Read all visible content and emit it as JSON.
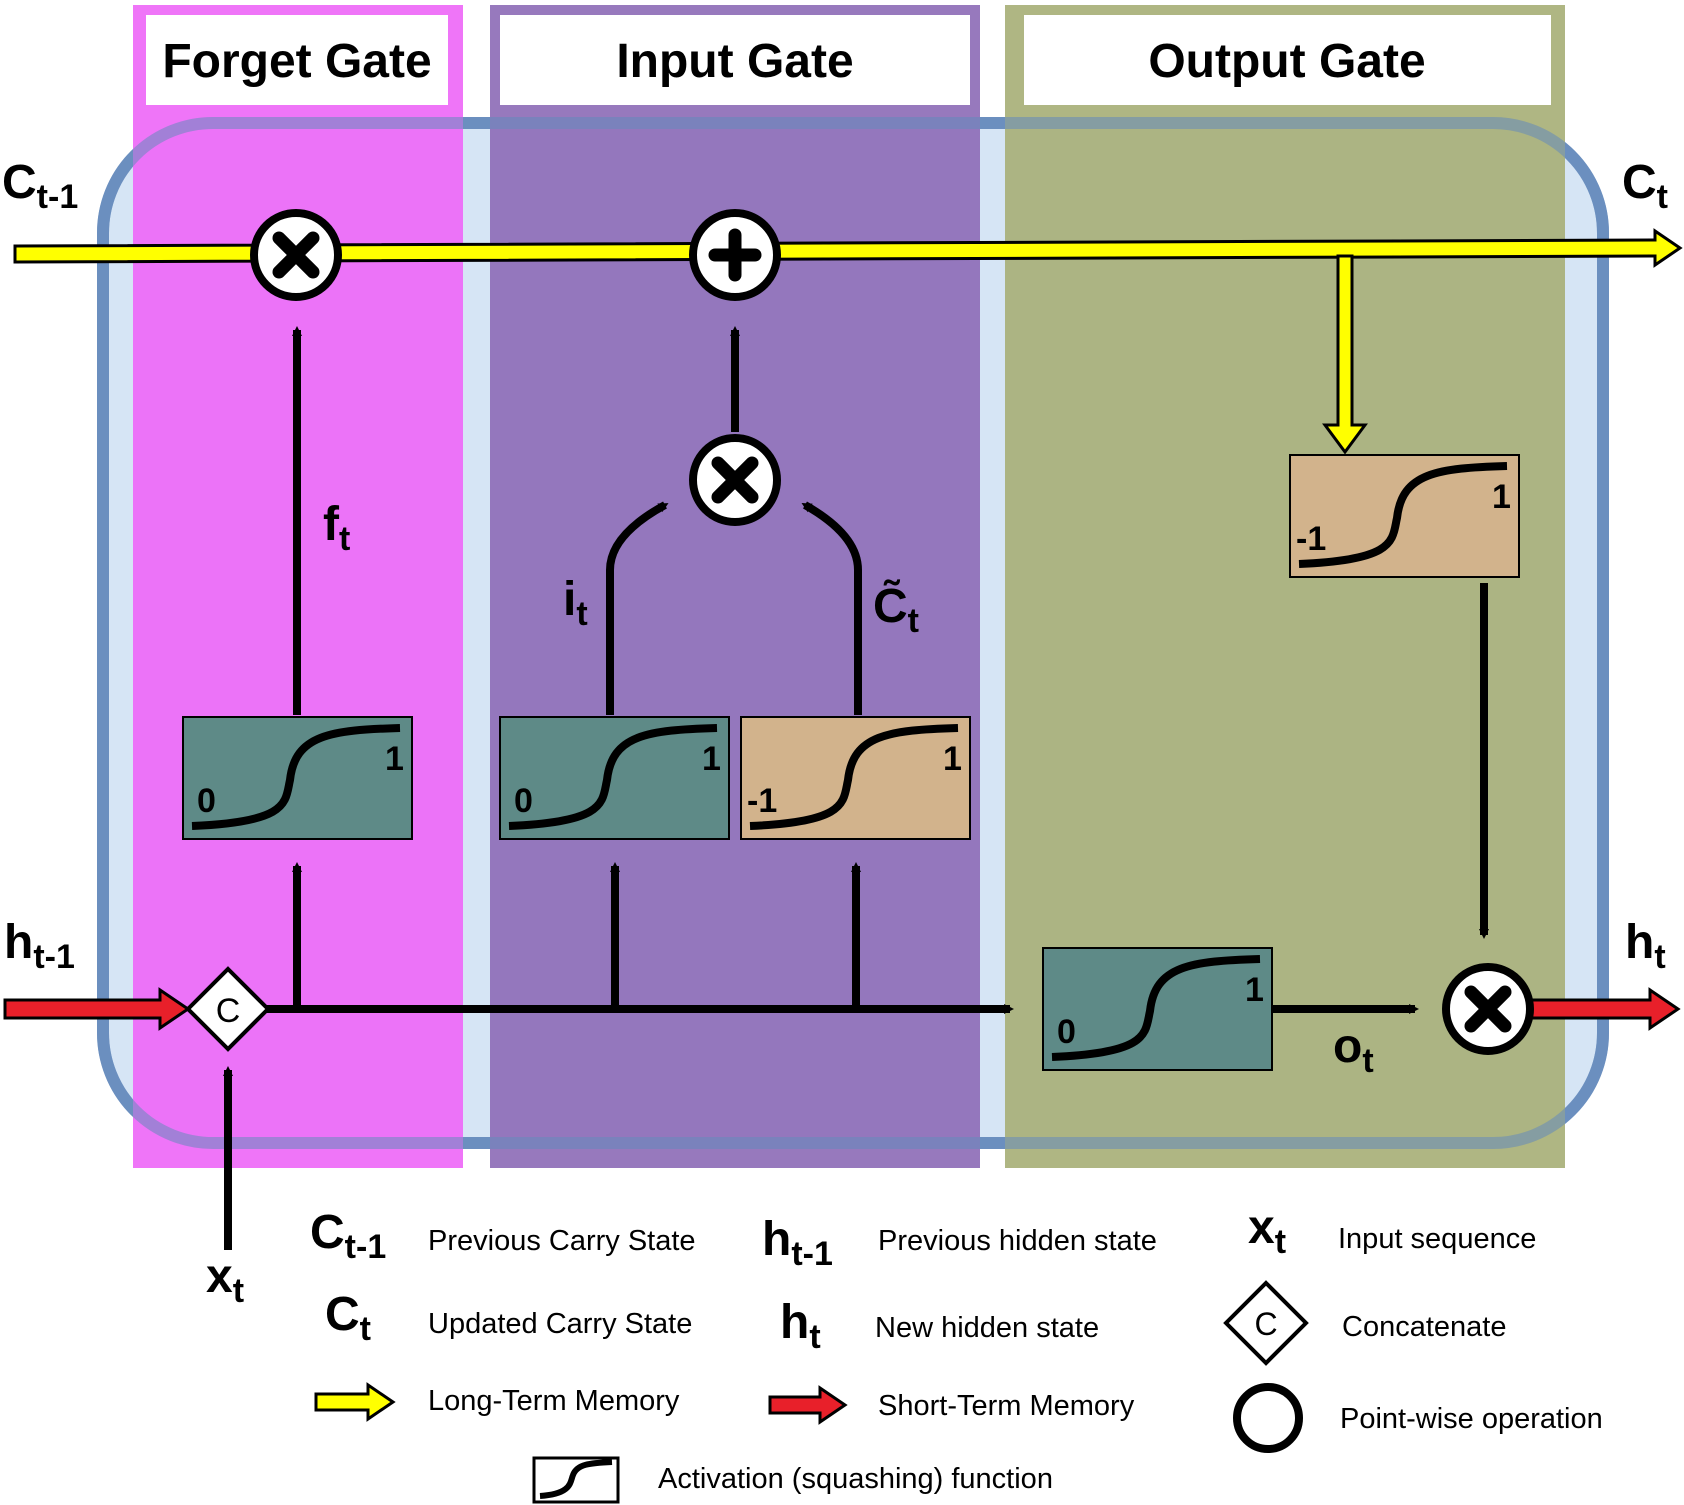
{
  "gates": {
    "forget": "Forget Gate",
    "input": "Input Gate",
    "output": "Output Gate"
  },
  "labels": {
    "c_prev": {
      "main": "C",
      "sub": "t-1"
    },
    "c_next": {
      "main": "C",
      "sub": "t"
    },
    "h_prev": {
      "main": "h",
      "sub": "t-1"
    },
    "h_next": {
      "main": "h",
      "sub": "t"
    },
    "x_in": {
      "main": "x",
      "sub": "t"
    },
    "f": {
      "main": "f",
      "sub": "t"
    },
    "i": {
      "main": "i",
      "sub": "t"
    },
    "c_tilde": {
      "main": "C̃",
      "sub": "t"
    },
    "o": {
      "main": "o",
      "sub": "t"
    }
  },
  "activations": {
    "forget_sigmoid": {
      "low": "0",
      "high": "1"
    },
    "input_sigmoid": {
      "low": "0",
      "high": "1"
    },
    "input_tanh": {
      "low": "-1",
      "high": "1"
    },
    "output_tanh": {
      "low": "-1",
      "high": "1"
    },
    "output_sigmoid": {
      "low": "0",
      "high": "1"
    }
  },
  "concat_symbol": "C",
  "legend": {
    "c_prev_desc": "Previous Carry State",
    "c_next_desc": "Updated Carry State",
    "long_term": "Long-Term Memory",
    "h_prev_desc": "Previous hidden state",
    "h_next_desc": "New hidden state",
    "short_term": "Short-Term Memory",
    "x_desc": "Input sequence",
    "concat_desc": "Concatenate",
    "pointwise_desc": "Point-wise operation",
    "activation_desc": "Activation (squashing) function"
  },
  "colors": {
    "forget_region": "#ee6bf7",
    "input_region": "#8f6fb8",
    "output_region": "#a9b07a",
    "cell_border": "#6b8fbf",
    "cell_fill": "#d6e5f5",
    "sigmoid_box": "#5e8a87",
    "tanh_box": "#d2b38c",
    "long_term_arrow": "#ffff00",
    "short_term_arrow": "#e8202a"
  }
}
